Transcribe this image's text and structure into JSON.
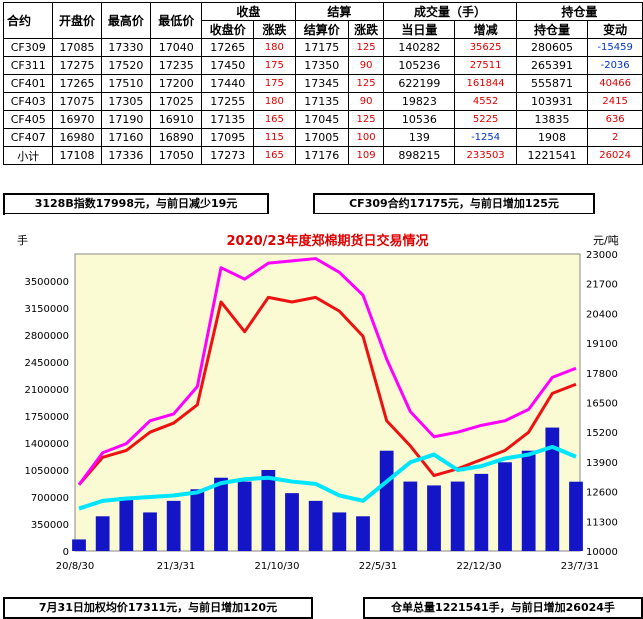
{
  "table": {
    "group_headers": {
      "settle_close": "收盘",
      "settle": "结算",
      "volume": "成交量（手）",
      "oi": "持仓量"
    },
    "headers": [
      "合约",
      "开盘价",
      "最高价",
      "最低价",
      "收盘价",
      "涨跌",
      "结算价",
      "涨跌",
      "当日量",
      "增减",
      "持仓量",
      "变动"
    ],
    "rows": [
      [
        "CF309",
        "17085",
        "17330",
        "17040",
        "17265",
        "180",
        "17175",
        "125",
        "140282",
        "35625",
        "280605",
        "-15459"
      ],
      [
        "CF311",
        "17275",
        "17520",
        "17235",
        "17450",
        "175",
        "17350",
        "90",
        "105236",
        "27511",
        "265391",
        "-2036"
      ],
      [
        "CF401",
        "17265",
        "17510",
        "17200",
        "17440",
        "175",
        "17345",
        "125",
        "622199",
        "161844",
        "555871",
        "40466"
      ],
      [
        "CF403",
        "17075",
        "17305",
        "17025",
        "17255",
        "180",
        "17135",
        "90",
        "19823",
        "4552",
        "103931",
        "2415"
      ],
      [
        "CF405",
        "16970",
        "17190",
        "16910",
        "17135",
        "165",
        "17045",
        "125",
        "10536",
        "5225",
        "13835",
        "636"
      ],
      [
        "CF407",
        "16980",
        "17160",
        "16890",
        "17095",
        "115",
        "17005",
        "100",
        "139",
        "-1254",
        "1908",
        "2"
      ],
      [
        "小计",
        "17108",
        "17336",
        "17050",
        "17273",
        "165",
        "17176",
        "109",
        "898215",
        "233503",
        "1221541",
        "26024"
      ]
    ]
  },
  "info": {
    "index_note": "3128B指数17998元，与前日减少19元",
    "cf309_note": "CF309合约17175元，与前日增加125元",
    "avg_note": "7月31日加权均价17311元，与前日增加120元",
    "warehouse_note": "仓单总量1221541手，与前日增加26024手"
  },
  "chart_data": {
    "type": "line",
    "title": "2020/23年度郑棉期货日交易情况",
    "ylabel_left": "手",
    "ylabel_right": "元/吨",
    "x_ticks": [
      "20/8/30",
      "21/3/31",
      "21/10/30",
      "22/5/31",
      "22/12/30",
      "23/7/31"
    ],
    "y_left_ticks": [
      0,
      350000,
      700000,
      1050000,
      1400000,
      1750000,
      2100000,
      2450000,
      2800000,
      3150000,
      3500000
    ],
    "y_right_ticks": [
      10000,
      11300,
      12600,
      13900,
      15200,
      16500,
      17800,
      19100,
      20400,
      21700,
      23000
    ],
    "ylim_left": [
      0,
      3850000
    ],
    "ylim_right": [
      10000,
      23000
    ],
    "x": [
      "20/8/30",
      "20/10/30",
      "20/12/30",
      "21/3/31",
      "21/5/31",
      "21/7/31",
      "21/10/30",
      "21/11/30",
      "21/12/30",
      "22/2/28",
      "22/3/31",
      "22/4/30",
      "22/5/31",
      "22/6/30",
      "22/8/31",
      "22/10/31",
      "22/12/30",
      "23/2/28",
      "23/4/30",
      "23/5/31",
      "23/6/30",
      "23/7/31"
    ],
    "series": [
      {
        "name": "",
        "color": "#ee1111",
        "axis": "right",
        "values": [
          12900,
          14100,
          14400,
          15200,
          15600,
          16400,
          20900,
          19600,
          21100,
          20900,
          21100,
          20500,
          19400,
          15700,
          14600,
          13300,
          13600,
          14000,
          14400,
          15200,
          16900,
          17300
        ]
      },
      {
        "name": "",
        "color": "#ff00ff",
        "axis": "right",
        "values": [
          12900,
          14300,
          14700,
          15700,
          16000,
          17200,
          22400,
          21900,
          22600,
          22700,
          22800,
          22200,
          21200,
          18400,
          16100,
          15000,
          15200,
          15500,
          15700,
          16200,
          17600,
          18000
        ]
      },
      {
        "name": "",
        "color": "#00e5ff",
        "axis": "left",
        "values": [
          550000,
          650000,
          680000,
          700000,
          720000,
          760000,
          880000,
          930000,
          950000,
          900000,
          870000,
          720000,
          650000,
          900000,
          1150000,
          1250000,
          1050000,
          1100000,
          1200000,
          1250000,
          1350000,
          1221541
        ]
      }
    ],
    "bars": {
      "name": "",
      "color": "#1515c8",
      "axis": "left",
      "values": [
        150000,
        450000,
        700000,
        500000,
        650000,
        800000,
        950000,
        900000,
        1050000,
        750000,
        650000,
        500000,
        450000,
        1300000,
        900000,
        850000,
        900000,
        1000000,
        1150000,
        1300000,
        1600000,
        898215
      ]
    },
    "background": "#fafbd2"
  }
}
